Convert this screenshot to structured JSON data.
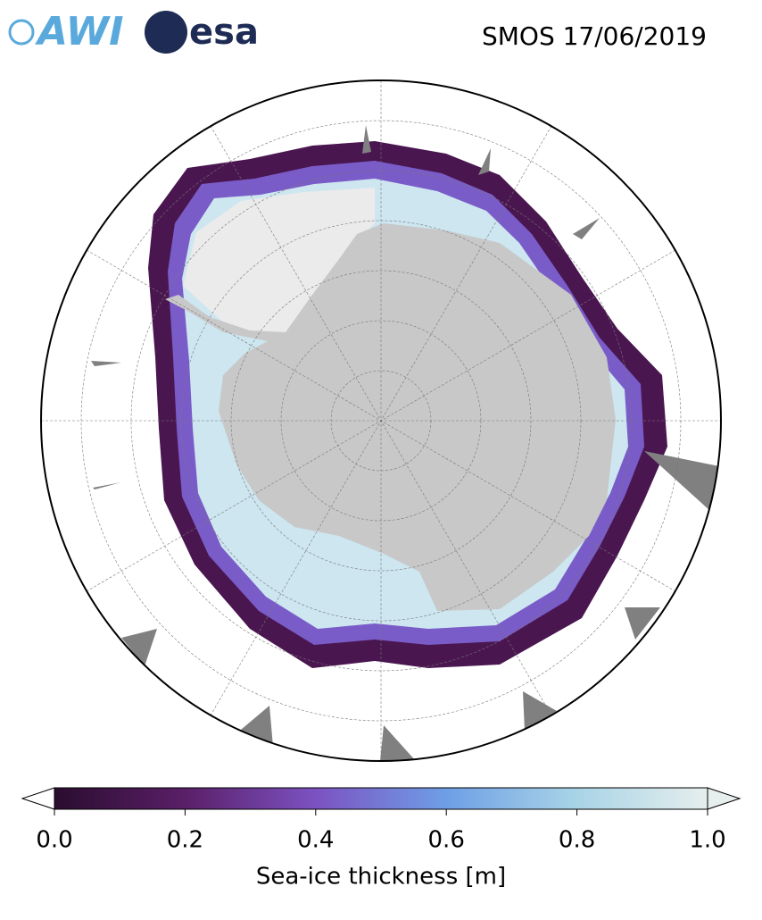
{
  "header": {
    "logos": [
      "AWI",
      "esa"
    ],
    "title": "SMOS 17/06/2019"
  },
  "colorbar": {
    "label": "Sea-ice thickness [m]",
    "lim": [
      0,
      1
    ],
    "ticks": [
      {
        "value": 0,
        "label": "0.0"
      },
      {
        "value": 0.2,
        "label": "0.2"
      },
      {
        "value": 0.4,
        "label": "0.4"
      },
      {
        "value": 0.6,
        "label": "0.6"
      },
      {
        "value": 0.8,
        "label": "0.8"
      },
      {
        "value": 1,
        "label": "1.0"
      }
    ],
    "colors": [
      "#2a0d2e",
      "#5a1f68",
      "#7c52c2",
      "#6e9fe6",
      "#a9d4e6",
      "#e6eeee"
    ],
    "under_color": "#ffffff",
    "over_color": "#e6eeee"
  }
}
